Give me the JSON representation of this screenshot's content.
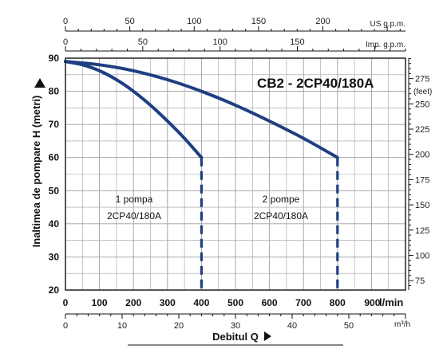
{
  "chart_data": {
    "type": "line",
    "title": "CB2 - 2CP40/180A",
    "ylabel": "Inaltimea de pompare",
    "ylabel_symbol": "H",
    "ylabel_unit": "(metri)",
    "xlabel": "Debitul",
    "xlabel_symbol": "Q",
    "x_unit": "l/min",
    "xlim": [
      0,
      1000
    ],
    "ylim": [
      20,
      90
    ],
    "x_ticks": [
      0,
      100,
      200,
      300,
      400,
      500,
      600,
      700,
      800,
      900
    ],
    "y_ticks": [
      20,
      30,
      40,
      50,
      60,
      70,
      80,
      90
    ],
    "grid": true,
    "series": [
      {
        "name": "1 pompa 2CP40/180A",
        "label_line1": "1 pompa",
        "label_line2": "2CP40/180A",
        "x": [
          0,
          50,
          100,
          150,
          200,
          250,
          300,
          350,
          400
        ],
        "y": [
          89,
          88,
          86.2,
          83.5,
          80,
          75.8,
          71,
          65.8,
          60
        ]
      },
      {
        "name": "2 pompe 2CP40/180A",
        "label_line1": "2 pompe",
        "label_line2": "2CP40/180A",
        "x": [
          0,
          100,
          200,
          300,
          400,
          500,
          600,
          700,
          800
        ],
        "y": [
          89,
          88,
          86.2,
          83.5,
          80,
          75.8,
          71,
          65.8,
          60
        ]
      }
    ],
    "dashed_drops": [
      {
        "x": 400,
        "y_from": 60,
        "y_to": 20
      },
      {
        "x": 800,
        "y_from": 60,
        "y_to": 20
      }
    ],
    "top_axis_us": {
      "unit": "US g.p.m.",
      "ticks": [
        0,
        50,
        100,
        150,
        200
      ]
    },
    "top_axis_imp": {
      "unit": "Imp. g.p.m.",
      "ticks": [
        0,
        50,
        100,
        150
      ]
    },
    "right_axis_feet": {
      "unit": "(feet)",
      "ticks": [
        75,
        100,
        125,
        150,
        175,
        200,
        225,
        250,
        275
      ]
    },
    "bottom_axis_m3h": {
      "unit": "m³/h",
      "ticks": [
        0,
        10,
        20,
        30,
        40,
        50
      ]
    },
    "colors": {
      "curve": "#1f3f82",
      "grid": "#9e9e9e",
      "text": "#111111"
    }
  }
}
